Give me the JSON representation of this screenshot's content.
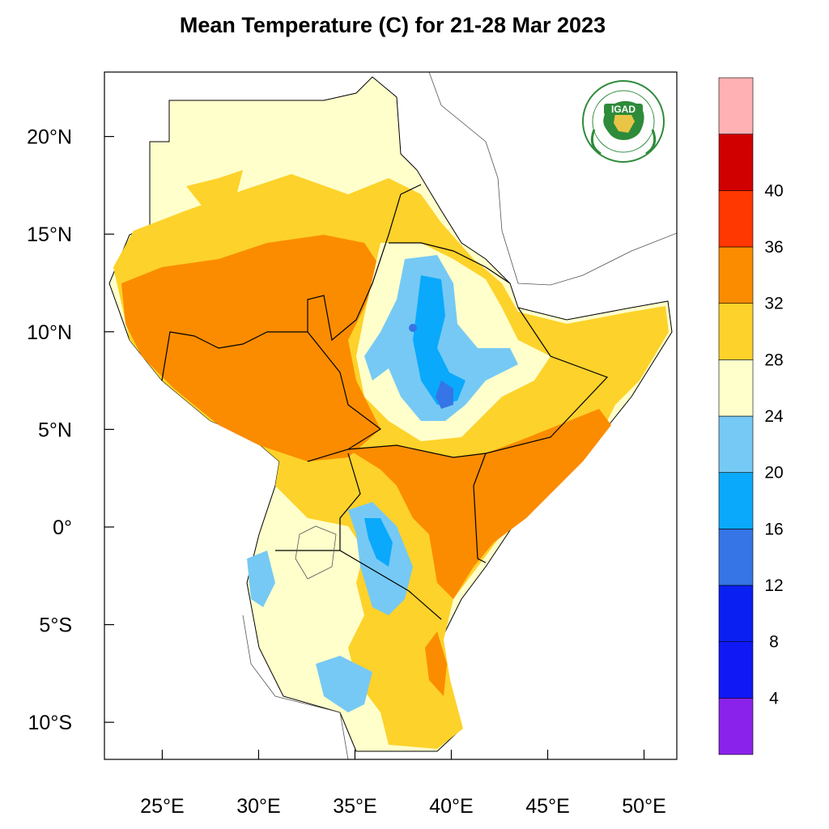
{
  "title": "Mean Temperature (C) for 21-28 Mar 2023",
  "logo": {
    "text": "IGAD",
    "ring_text": "INTERGOVERNMENTAL AUTHORITY ON DEVELOPMENT",
    "icon": "igad-logo"
  },
  "map": {
    "lon_range": [
      22,
      51.7
    ],
    "lat_range": [
      -11.9,
      23.3
    ],
    "x_ticks": [
      {
        "value": 25,
        "label": "25°E"
      },
      {
        "value": 30,
        "label": "30°E"
      },
      {
        "value": 35,
        "label": "35°E"
      },
      {
        "value": 40,
        "label": "40°E"
      },
      {
        "value": 45,
        "label": "45°E"
      },
      {
        "value": 50,
        "label": "50°E"
      }
    ],
    "y_ticks": [
      {
        "value": 20,
        "label": "20°N"
      },
      {
        "value": 15,
        "label": "15°N"
      },
      {
        "value": 10,
        "label": "10°N"
      },
      {
        "value": 5,
        "label": "5°N"
      },
      {
        "value": 0,
        "label": "0°"
      },
      {
        "value": -5,
        "label": "5°S"
      },
      {
        "value": -10,
        "label": "10°S"
      }
    ]
  },
  "colorbar": {
    "colors": [
      "#8a22ec",
      "#1018f5",
      "#0a1ff2",
      "#3575e6",
      "#0aa9fc",
      "#76c9f4",
      "#ffffcc",
      "#fdd22a",
      "#fb8c00",
      "#ff3700",
      "#d10000",
      "#ffb1b4"
    ],
    "labels": [
      "4",
      "8",
      "12",
      "16",
      "20",
      "24",
      "28",
      "32",
      "36",
      "40"
    ]
  },
  "legend_colors": {
    "below_20": "#76c9f4",
    "20_24": "#ffffcc",
    "24_28": "#fdd22a",
    "28_32": "#fb8c00",
    "cool_16": "#0aa9fc",
    "cold_12": "#3575e6"
  }
}
